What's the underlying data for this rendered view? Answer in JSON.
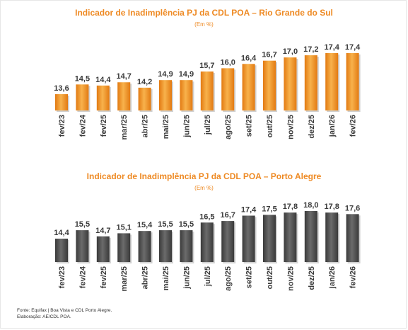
{
  "source_lines": [
    "Fonte: Equifax | Boa Vista e CDL Porto Alegre.",
    "Elaboração: AE/CDL POA."
  ],
  "colors": {
    "title": "#ee8a24",
    "orange_top": "#f8b24c",
    "orange_bottom": "#e27a12",
    "gray_top": "#6b6b6b",
    "gray_bottom": "#3a3a3a",
    "text": "#3a3a3a"
  },
  "chart_data": [
    {
      "type": "bar",
      "title": "Indicador de Inadimplência PJ da CDL POA – Rio Grande do Sul",
      "subtitle": "(Em %)",
      "categories": [
        "fev/23",
        "fev/24",
        "fev/25",
        "mar/25",
        "abr/25",
        "mai/25",
        "jun/25",
        "jul/25",
        "ago/25",
        "set/25",
        "out/25",
        "nov/25",
        "dez/25",
        "jan/26",
        "fev/26"
      ],
      "values": [
        13.6,
        14.5,
        14.4,
        14.7,
        14.2,
        14.9,
        14.9,
        15.7,
        16.0,
        16.4,
        16.7,
        17.0,
        17.2,
        17.4,
        17.4
      ],
      "value_labels": [
        "13,6",
        "14,5",
        "14,4",
        "14,7",
        "14,2",
        "14,9",
        "14,9",
        "15,7",
        "16,0",
        "16,4",
        "16,7",
        "17,0",
        "17,2",
        "17,4",
        "17,4"
      ],
      "color": "orange",
      "grid": false,
      "legend": "none"
    },
    {
      "type": "bar",
      "title": "Indicador de Inadimplência PJ da CDL POA – Porto Alegre",
      "subtitle": "(Em %)",
      "categories": [
        "fev/23",
        "fev/24",
        "fev/25",
        "mar/25",
        "abr/25",
        "mai/25",
        "jun/25",
        "jul/25",
        "ago/25",
        "set/25",
        "out/25",
        "nov/25",
        "dez/25",
        "jan/26",
        "fev/26"
      ],
      "values": [
        14.4,
        15.5,
        14.7,
        15.1,
        15.4,
        15.5,
        15.5,
        16.5,
        16.7,
        17.4,
        17.5,
        17.8,
        18.0,
        17.8,
        17.6
      ],
      "value_labels": [
        "14,4",
        "15,5",
        "14,7",
        "15,1",
        "15,4",
        "15,5",
        "15,5",
        "16,5",
        "16,7",
        "17,4",
        "17,5",
        "17,8",
        "18,0",
        "17,8",
        "17,6"
      ],
      "color": "gray",
      "grid": false,
      "legend": "none"
    }
  ]
}
